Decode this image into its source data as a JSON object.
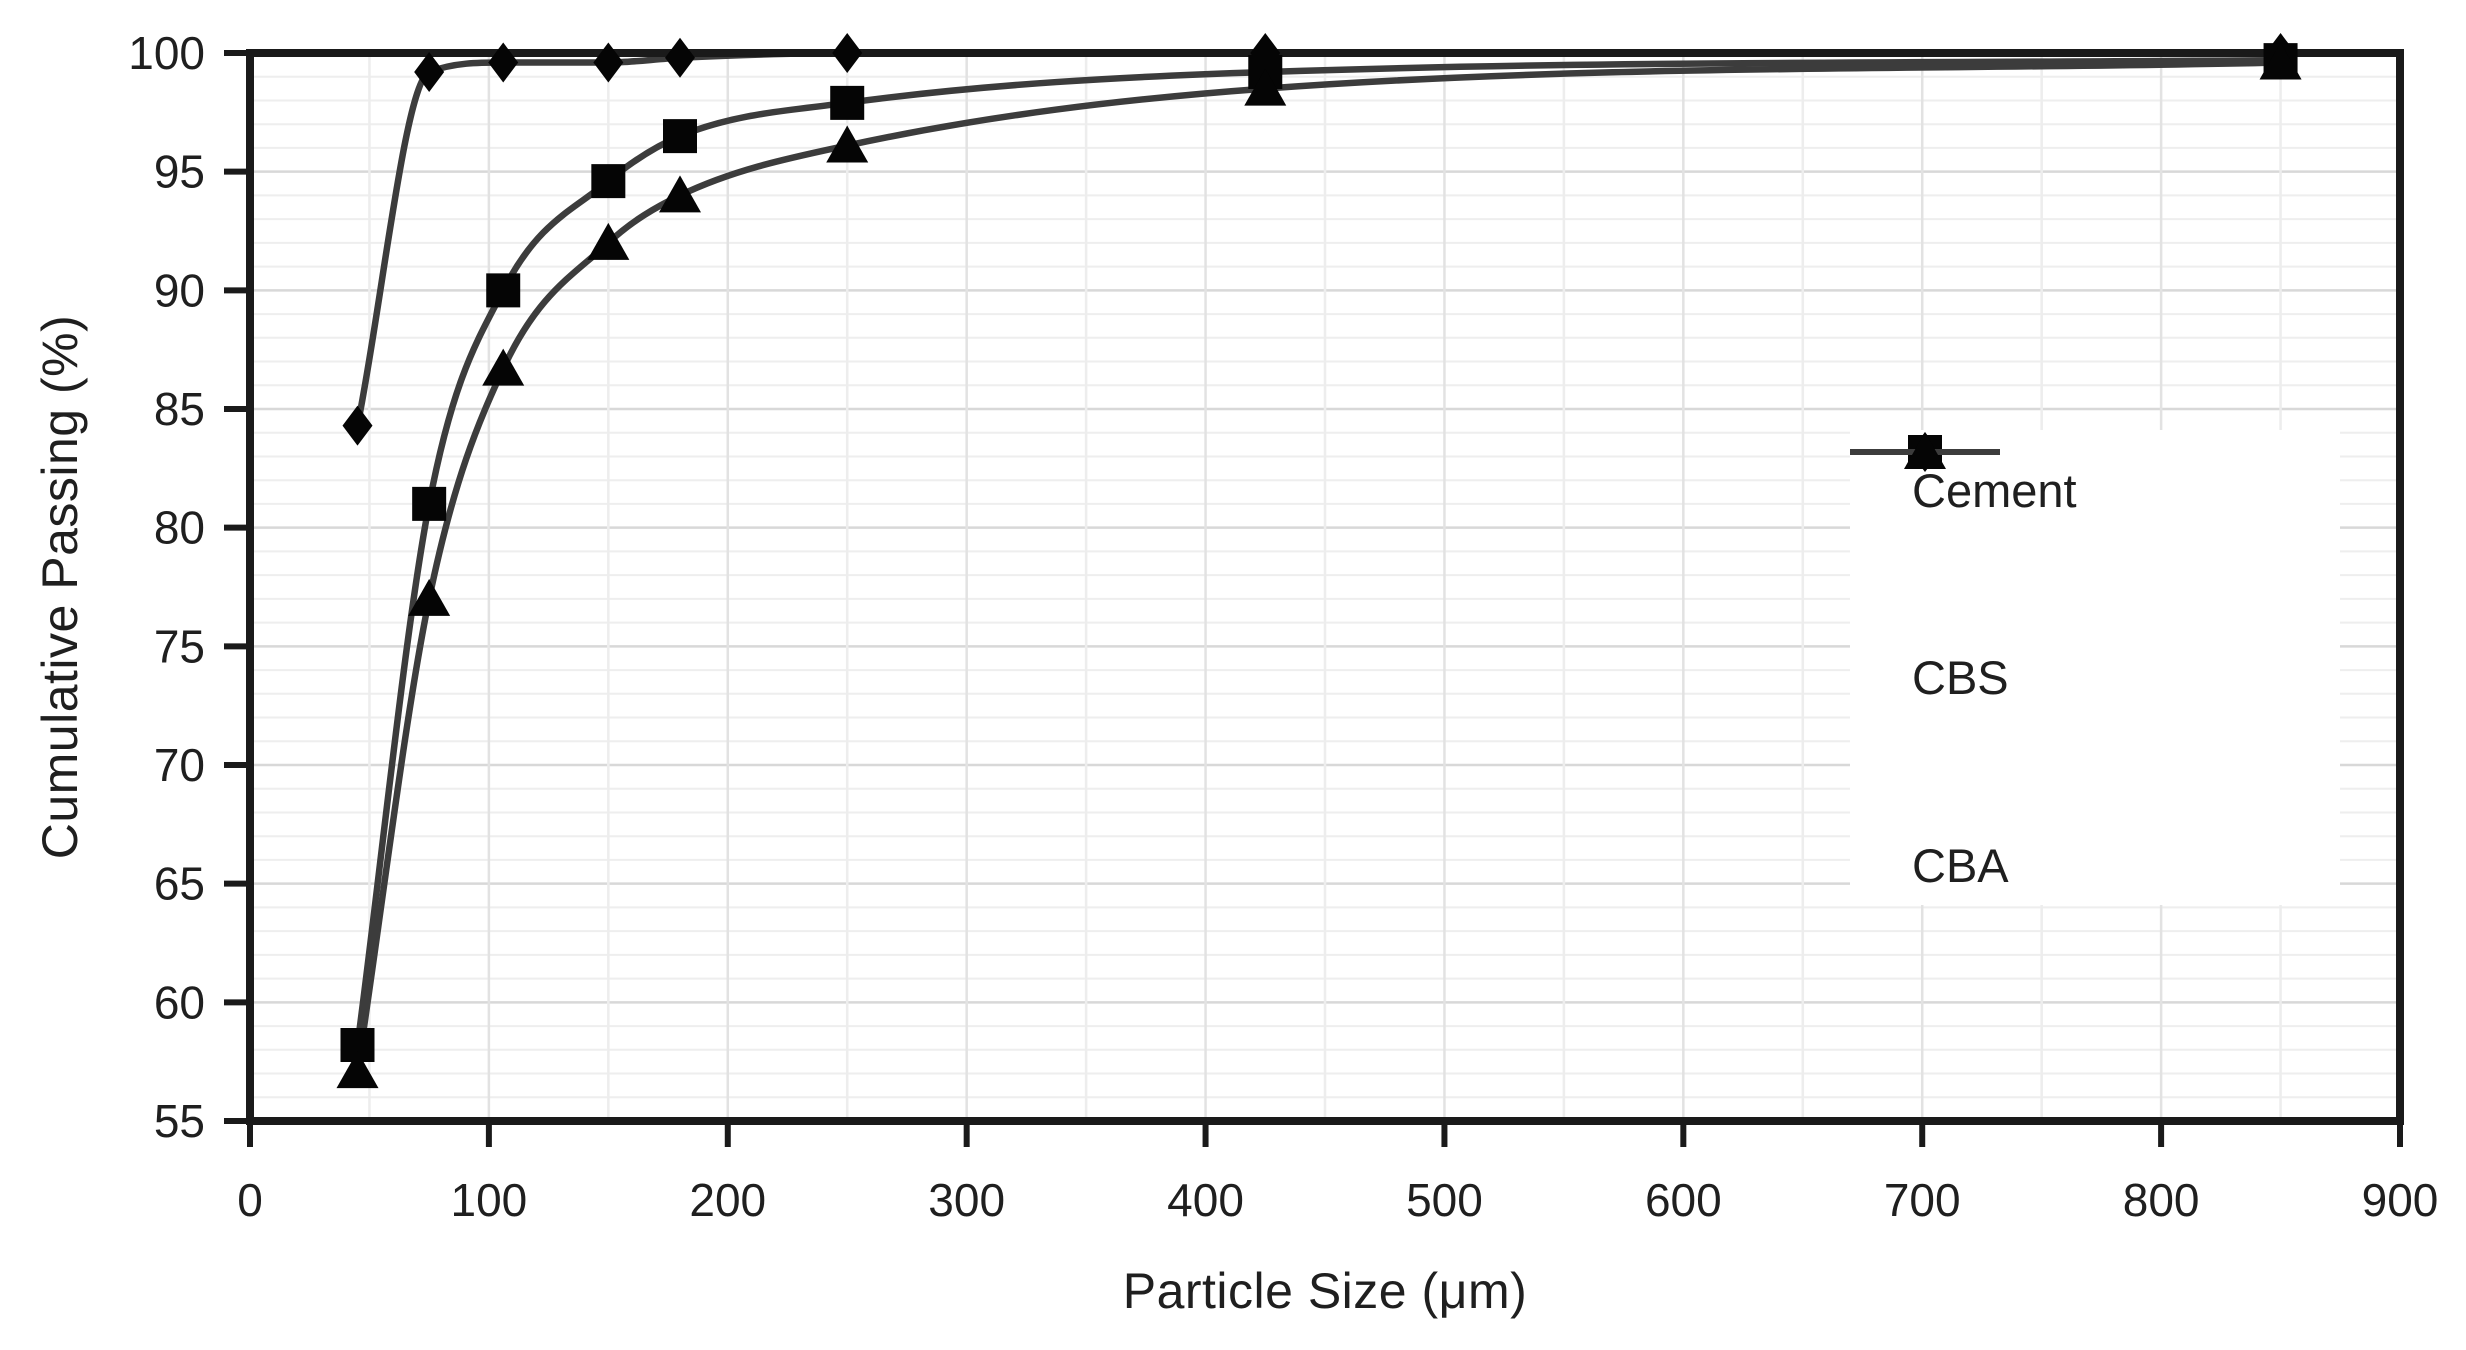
{
  "chart_data": {
    "type": "line",
    "title": "",
    "xlabel": "Particle Size (μm)",
    "ylabel": "Cumulative Passing (%)",
    "xlim": [
      0,
      900
    ],
    "ylim": [
      55,
      100
    ],
    "x_ticks": [
      0,
      100,
      200,
      300,
      400,
      500,
      600,
      700,
      800,
      900
    ],
    "y_ticks": [
      55,
      60,
      65,
      70,
      75,
      80,
      85,
      90,
      95,
      100
    ],
    "x_minor_step": 50,
    "y_minor_step": 1,
    "grid": "minor horizontal every 1%, minor vertical every 50 um, majors darker",
    "legend_position": "right-middle, borderless white box",
    "x": [
      45,
      75,
      106,
      150,
      180,
      250,
      425,
      850
    ],
    "series": [
      {
        "name": "Cement",
        "marker": "diamond",
        "values": [
          84.3,
          99.2,
          99.6,
          99.6,
          99.8,
          100,
          100,
          100
        ]
      },
      {
        "name": "CBS",
        "marker": "square",
        "values": [
          58.2,
          81.0,
          90.0,
          94.6,
          96.5,
          97.9,
          99.2,
          99.7
        ]
      },
      {
        "name": "CBA",
        "marker": "triangle",
        "values": [
          57.1,
          77.0,
          86.7,
          92.0,
          94.0,
          96.1,
          98.5,
          99.6
        ]
      }
    ],
    "line_style": "smoothed",
    "colors": {
      "background": "#ffffff",
      "series_line": "#3c3c3c",
      "marker_fill": "#050505",
      "axis": "#1a1a1a",
      "text": "#1f1f1f",
      "grid_minor": "#eeeeee",
      "grid_major": "#d8d8d8",
      "grid_minor_vertical": "#ededed",
      "grid_major_vertical": "#e2e2e2"
    }
  }
}
